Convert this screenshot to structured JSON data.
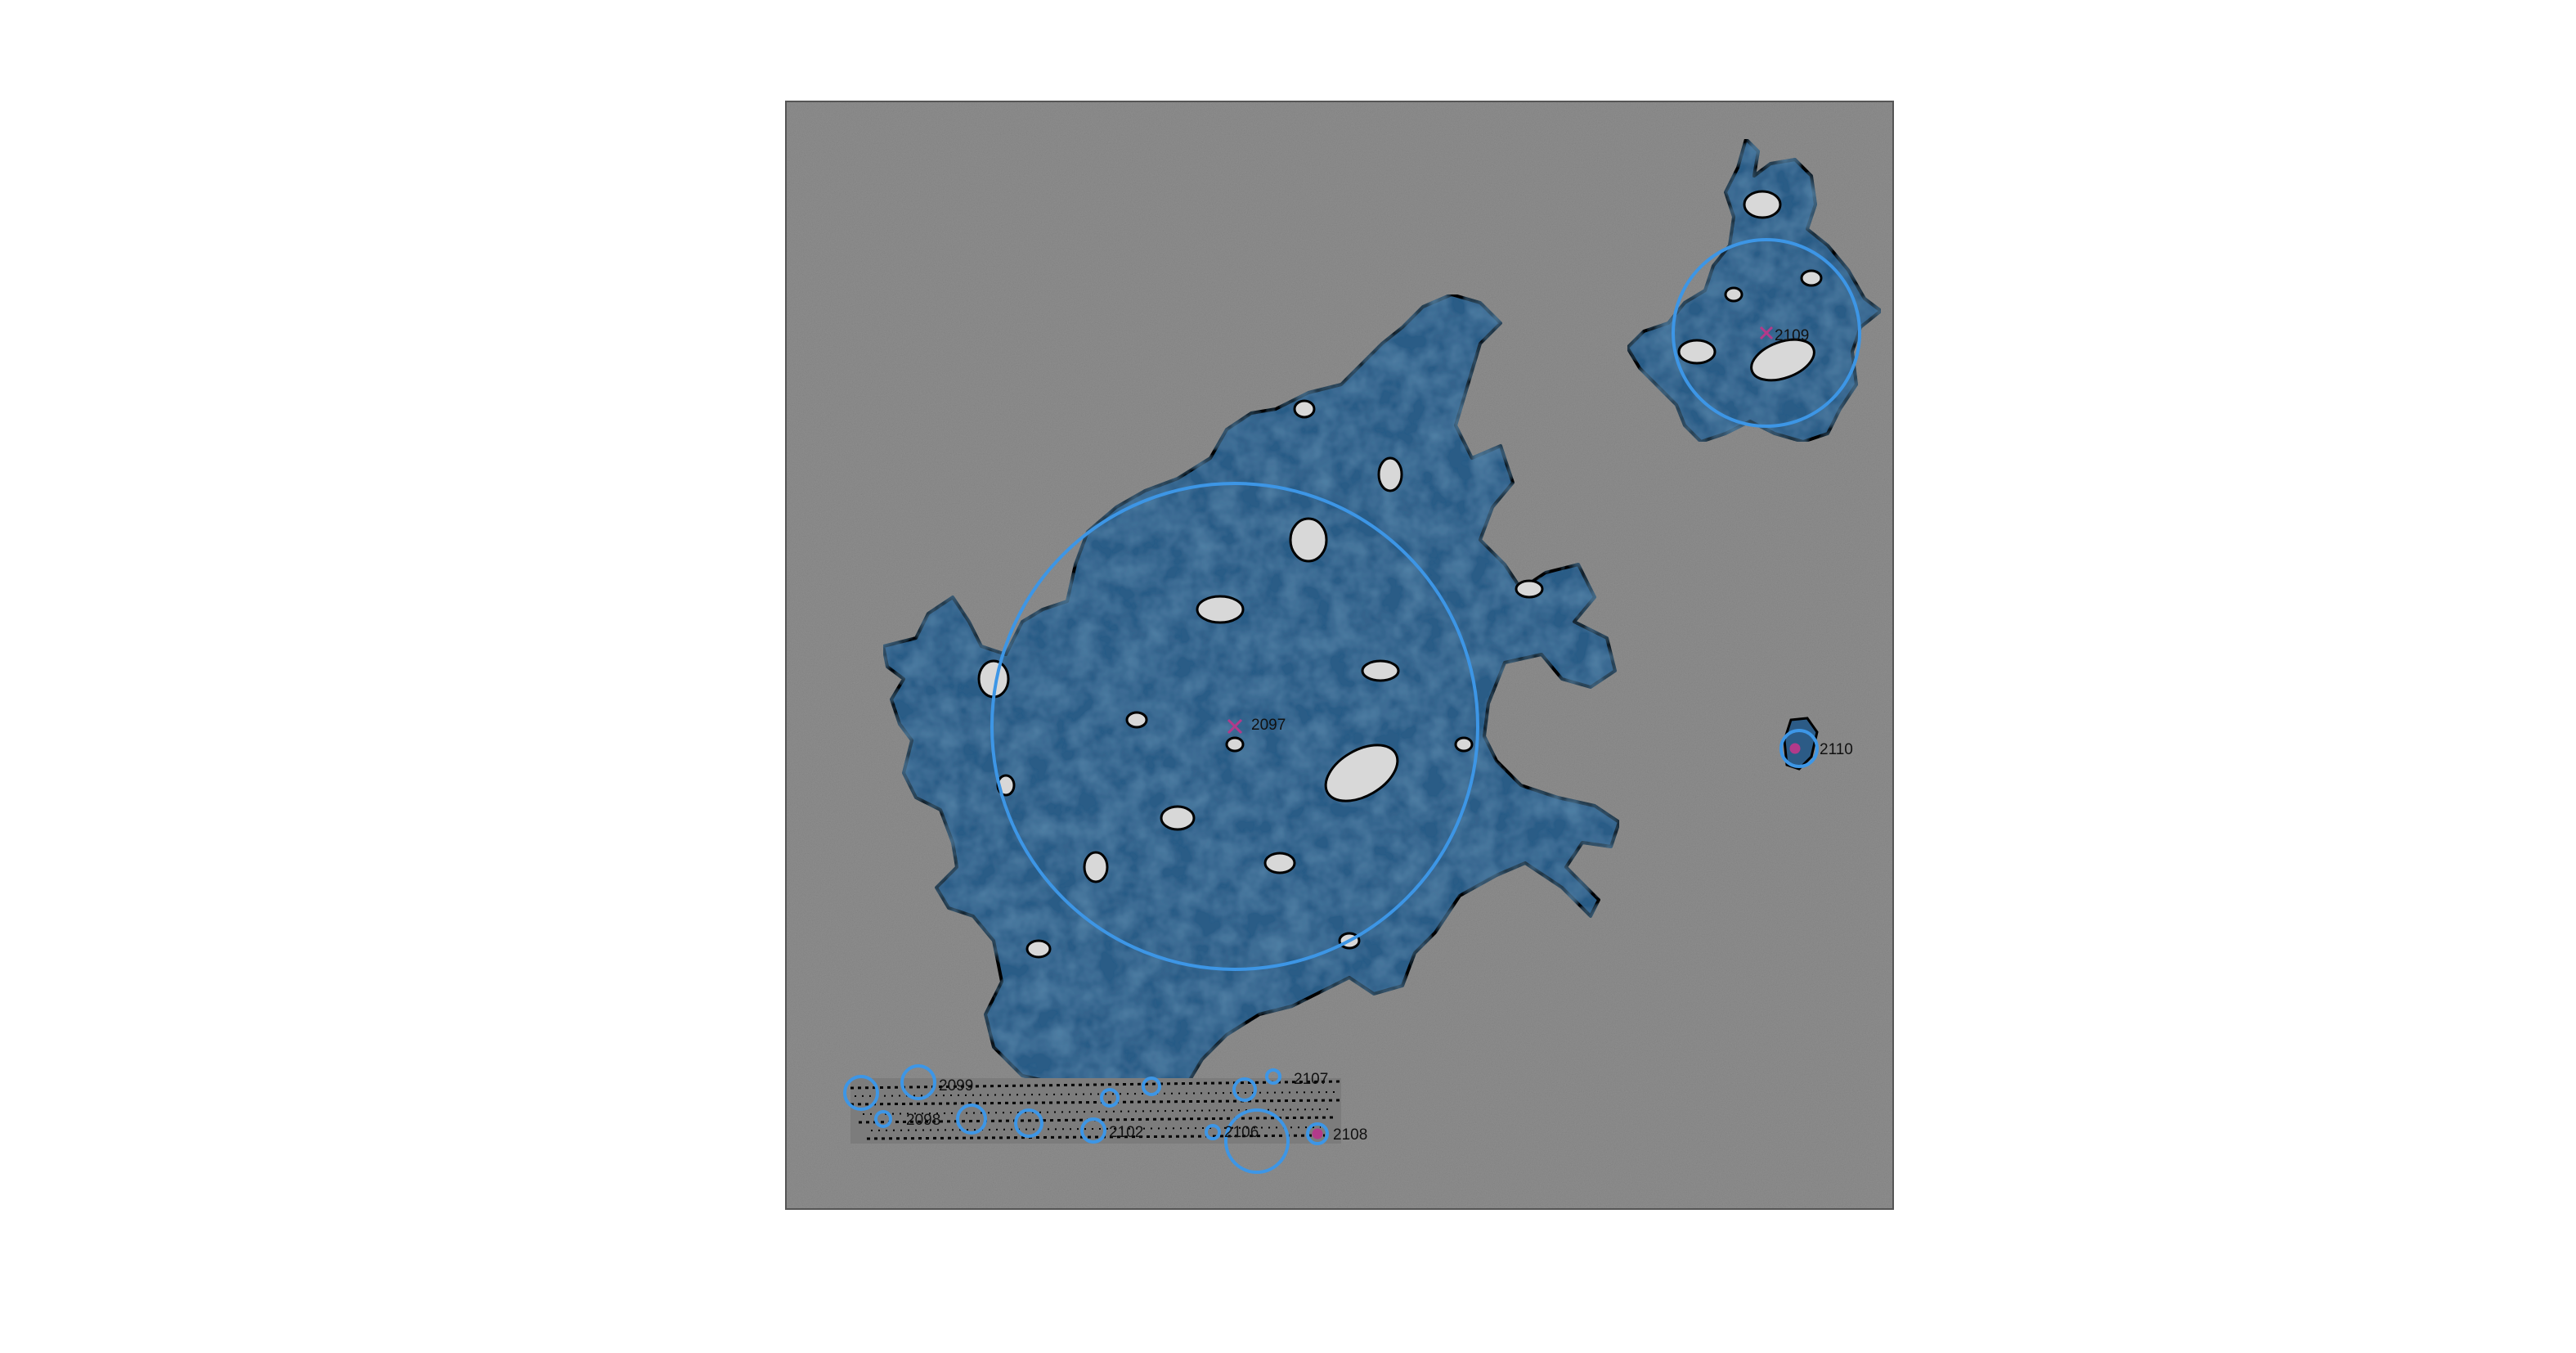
{
  "image": {
    "kind": "micrograph-with-segmentation-overlay",
    "background_color": "#ffffff",
    "frame_color": "#555555",
    "micrograph_color": "#8e8e8e",
    "mask_fill_color": "#2c5b86",
    "contour_color": "#000000",
    "circle_color": "#3d96e6",
    "center_marker_color": "#b23a8a",
    "label_color": "#111111"
  },
  "annotations": [
    {
      "id": "2097",
      "label": "2097",
      "marker": "x"
    },
    {
      "id": "2109",
      "label": "2109",
      "marker": "x"
    },
    {
      "id": "2110",
      "label": "2110",
      "marker": "dot"
    },
    {
      "id": "2107",
      "label": "2107",
      "marker": "none"
    },
    {
      "id": "2108",
      "label": "2108",
      "marker": "dot"
    },
    {
      "id": "2099",
      "label": "2099",
      "marker": "none"
    },
    {
      "id": "2098",
      "label": "2098",
      "marker": "none"
    },
    {
      "id": "2102",
      "label": "2102",
      "marker": "none"
    },
    {
      "id": "2106",
      "label": "2106",
      "marker": "none"
    }
  ]
}
